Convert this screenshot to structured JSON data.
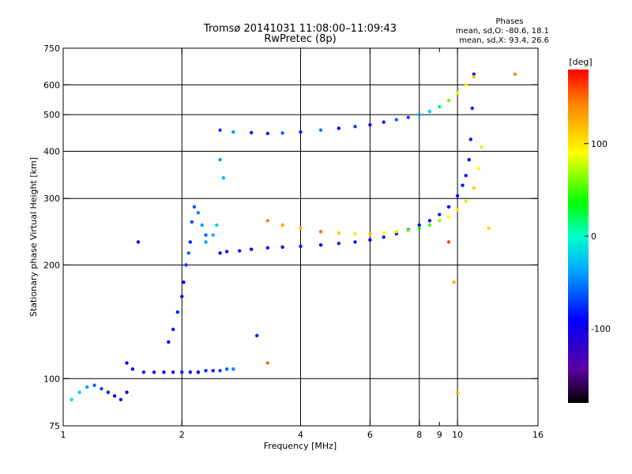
{
  "chart_data": {
    "type": "scatter",
    "title": "Tromsø 20141031 11:08:00–11:09:43",
    "subtitle": "RwPretec (8p)",
    "phases_note": {
      "heading": "Phases",
      "line1": "mean, sd,O: -80.6, 18.1",
      "line2": "mean, sd,X:  93.4, 26.6"
    },
    "xlabel": "Frequency [MHz]",
    "ylabel": "Stationary phase Virtual Height [km]",
    "x_scale": "log",
    "y_scale": "log",
    "xlim": [
      1,
      16
    ],
    "ylim": [
      75,
      750
    ],
    "x_ticks": [
      1,
      2,
      4,
      6,
      8,
      10,
      16
    ],
    "x_minor_ticks": [
      9
    ],
    "y_ticks": [
      75,
      100,
      200,
      300,
      400,
      500,
      600,
      750
    ],
    "grid": true,
    "colorbar": {
      "label": "[deg]",
      "range": [
        -180,
        180
      ],
      "ticks": [
        100,
        0,
        -100
      ]
    },
    "series": [
      {
        "x": [
          2.5,
          2.6,
          2.8,
          3.0,
          3.3,
          3.6,
          4.0,
          4.5,
          5.0,
          5.5,
          6.0,
          6.5,
          7.0,
          7.5,
          8.0,
          8.5,
          9.0,
          9.5,
          10.0,
          10.3,
          10.5,
          10.7,
          10.8,
          10.9,
          11.0
        ],
        "y": [
          215,
          217,
          218,
          220,
          222,
          223,
          224,
          226,
          228,
          230,
          233,
          237,
          242,
          248,
          255,
          262,
          272,
          285,
          305,
          325,
          345,
          380,
          430,
          520,
          640
        ],
        "phase": [
          -90,
          -90,
          -85,
          -90,
          -85,
          -90,
          -85,
          -90,
          -80,
          -85,
          -90,
          -80,
          -85,
          -80,
          -90,
          -85,
          -80,
          -85,
          -90,
          -85,
          -80,
          -90,
          -85,
          -80,
          -85
        ]
      },
      {
        "x": [
          3.3,
          3.6,
          4.0,
          4.5,
          5.0,
          5.5,
          6.0,
          6.5,
          7.0,
          7.5,
          8.0,
          8.5,
          9.0,
          9.5,
          10.0,
          10.5,
          11.0,
          11.3,
          11.5
        ],
        "y": [
          262,
          255,
          250,
          245,
          243,
          242,
          242,
          243,
          245,
          247,
          250,
          255,
          262,
          268,
          280,
          295,
          320,
          360,
          410
        ],
        "phase": [
          140,
          130,
          120,
          150,
          110,
          100,
          120,
          90,
          80,
          60,
          40,
          50,
          70,
          90,
          100,
          80,
          110,
          90,
          100
        ]
      },
      {
        "x": [
          2.5,
          2.7,
          3.0,
          3.3,
          3.6,
          4.0,
          4.5,
          5.0,
          5.5,
          6.0,
          6.5,
          7.0,
          7.5,
          8.0,
          8.5,
          9.0,
          9.5,
          10.0,
          10.5,
          11.0
        ],
        "y": [
          455,
          450,
          448,
          446,
          447,
          450,
          455,
          460,
          465,
          470,
          478,
          485,
          492,
          500,
          510,
          525,
          545,
          570,
          600,
          630
        ],
        "phase": [
          -70,
          -40,
          -80,
          -90,
          -60,
          -80,
          -50,
          -90,
          -70,
          -85,
          -80,
          -60,
          -70,
          -40,
          -20,
          20,
          60,
          80,
          100,
          120
        ]
      },
      {
        "x": [
          1.45,
          1.5,
          1.6,
          1.7,
          1.8,
          1.9,
          2.0,
          2.1,
          2.2,
          2.3,
          2.4,
          2.5,
          2.6,
          2.7
        ],
        "y": [
          110,
          106,
          104,
          104,
          104,
          104,
          104,
          104,
          104,
          105,
          105,
          105,
          106,
          106
        ],
        "phase": [
          -90,
          -85,
          -80,
          -85,
          -90,
          -85,
          -80,
          -85,
          -90,
          -80,
          -85,
          -70,
          -60,
          -50
        ]
      },
      {
        "x": [
          1.85,
          1.9,
          1.95,
          2.0,
          2.02,
          2.05,
          2.08,
          2.1,
          2.12,
          2.15,
          2.2,
          2.25,
          2.3
        ],
        "y": [
          125,
          135,
          150,
          165,
          180,
          200,
          215,
          230,
          260,
          285,
          275,
          255,
          240
        ],
        "phase": [
          -90,
          -85,
          -80,
          -85,
          -90,
          -70,
          -60,
          -80,
          -70,
          -60,
          -50,
          -40,
          -60
        ]
      },
      {
        "x": [
          2.3,
          2.4,
          2.45,
          2.5,
          2.55
        ],
        "y": [
          230,
          240,
          255,
          380,
          340
        ],
        "phase": [
          -40,
          -30,
          -20,
          -40,
          -30
        ]
      },
      {
        "x": [
          1.05,
          1.1,
          1.15,
          1.2,
          1.25,
          1.3,
          1.35,
          1.4,
          1.45
        ],
        "y": [
          88,
          92,
          95,
          96,
          94,
          92,
          90,
          88,
          92
        ],
        "phase": [
          -10,
          -20,
          -40,
          -60,
          -70,
          -80,
          -90,
          -85,
          -100
        ]
      },
      {
        "x": [
          1.55,
          3.1,
          3.3,
          12.0,
          9.5,
          9.8,
          10.0,
          14.0
        ],
        "y": [
          230,
          130,
          110,
          250,
          230,
          180,
          92,
          640
        ],
        "phase": [
          -90,
          -80,
          150,
          110,
          160,
          120,
          120,
          140
        ]
      }
    ]
  }
}
